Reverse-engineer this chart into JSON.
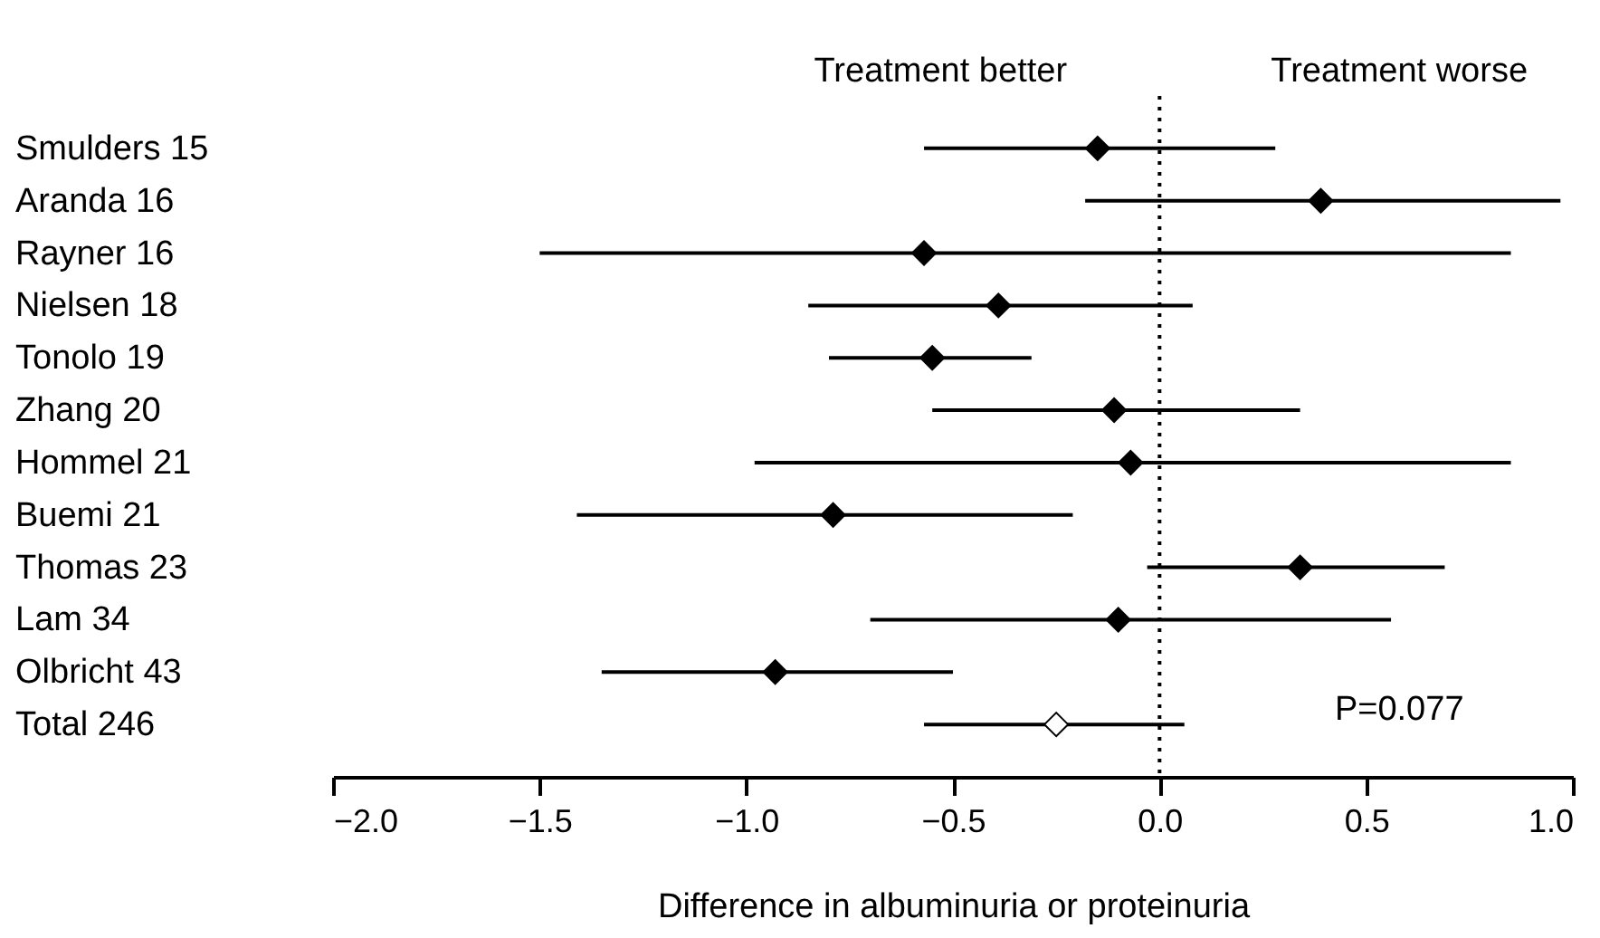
{
  "chart_data": {
    "type": "scatter",
    "orientation": "horizontal",
    "xlabel": "Difference in albuminuria or proteinuria",
    "categories": [
      "Smulders 15",
      "Aranda 16",
      "Rayner 16",
      "Nielsen 18",
      "Tonolo 19",
      "Zhang 20",
      "Hommel 21",
      "Buemi 21",
      "Thomas 23",
      "Lam 34",
      "Olbricht 43",
      "Total 246"
    ],
    "series": [
      {
        "color": "#000000",
        "values": [
          -0.15,
          0.39,
          -0.57,
          -0.39,
          -0.55,
          -0.11,
          -0.07,
          -0.79,
          0.34,
          -0.1,
          -0.93,
          null
        ],
        "errors": [
          [
            -0.57,
            0.28
          ],
          [
            -0.18,
            0.97
          ],
          [
            -1.5,
            0.85
          ],
          [
            -0.85,
            0.08
          ],
          [
            -0.8,
            -0.31
          ],
          [
            -0.55,
            0.34
          ],
          [
            -0.98,
            0.85
          ],
          [
            -1.41,
            -0.21
          ],
          [
            -0.03,
            0.69
          ],
          [
            -0.7,
            0.56
          ],
          [
            -1.35,
            -0.5
          ],
          null
        ]
      },
      {
        "color": "#ffffff",
        "values": [
          null,
          null,
          null,
          null,
          null,
          null,
          null,
          null,
          null,
          null,
          null,
          -0.25
        ],
        "errors": [
          null,
          null,
          null,
          null,
          null,
          null,
          null,
          null,
          null,
          null,
          null,
          [
            -0.57,
            0.06
          ]
        ]
      }
    ],
    "xlim": [
      -2,
      1
    ],
    "xticks": [
      {
        "value": -2,
        "label": "−2.0"
      },
      {
        "value": -1.5,
        "label": "−1.5"
      },
      {
        "value": -1,
        "label": "−1.0"
      },
      {
        "value": -0.5,
        "label": "−0.5"
      },
      {
        "value": 0,
        "label": "0.0"
      },
      {
        "value": 0.5,
        "label": "0.5"
      },
      {
        "value": 1,
        "label": "1.0"
      }
    ],
    "ref_lines": [
      {
        "axis": "x",
        "value": 0,
        "line_style": "dotted",
        "color": "#000000"
      }
    ],
    "marker": "diamond",
    "grid": false,
    "annotations": [
      "Treatment better",
      "Treatment worse",
      "P=0.077"
    ]
  }
}
